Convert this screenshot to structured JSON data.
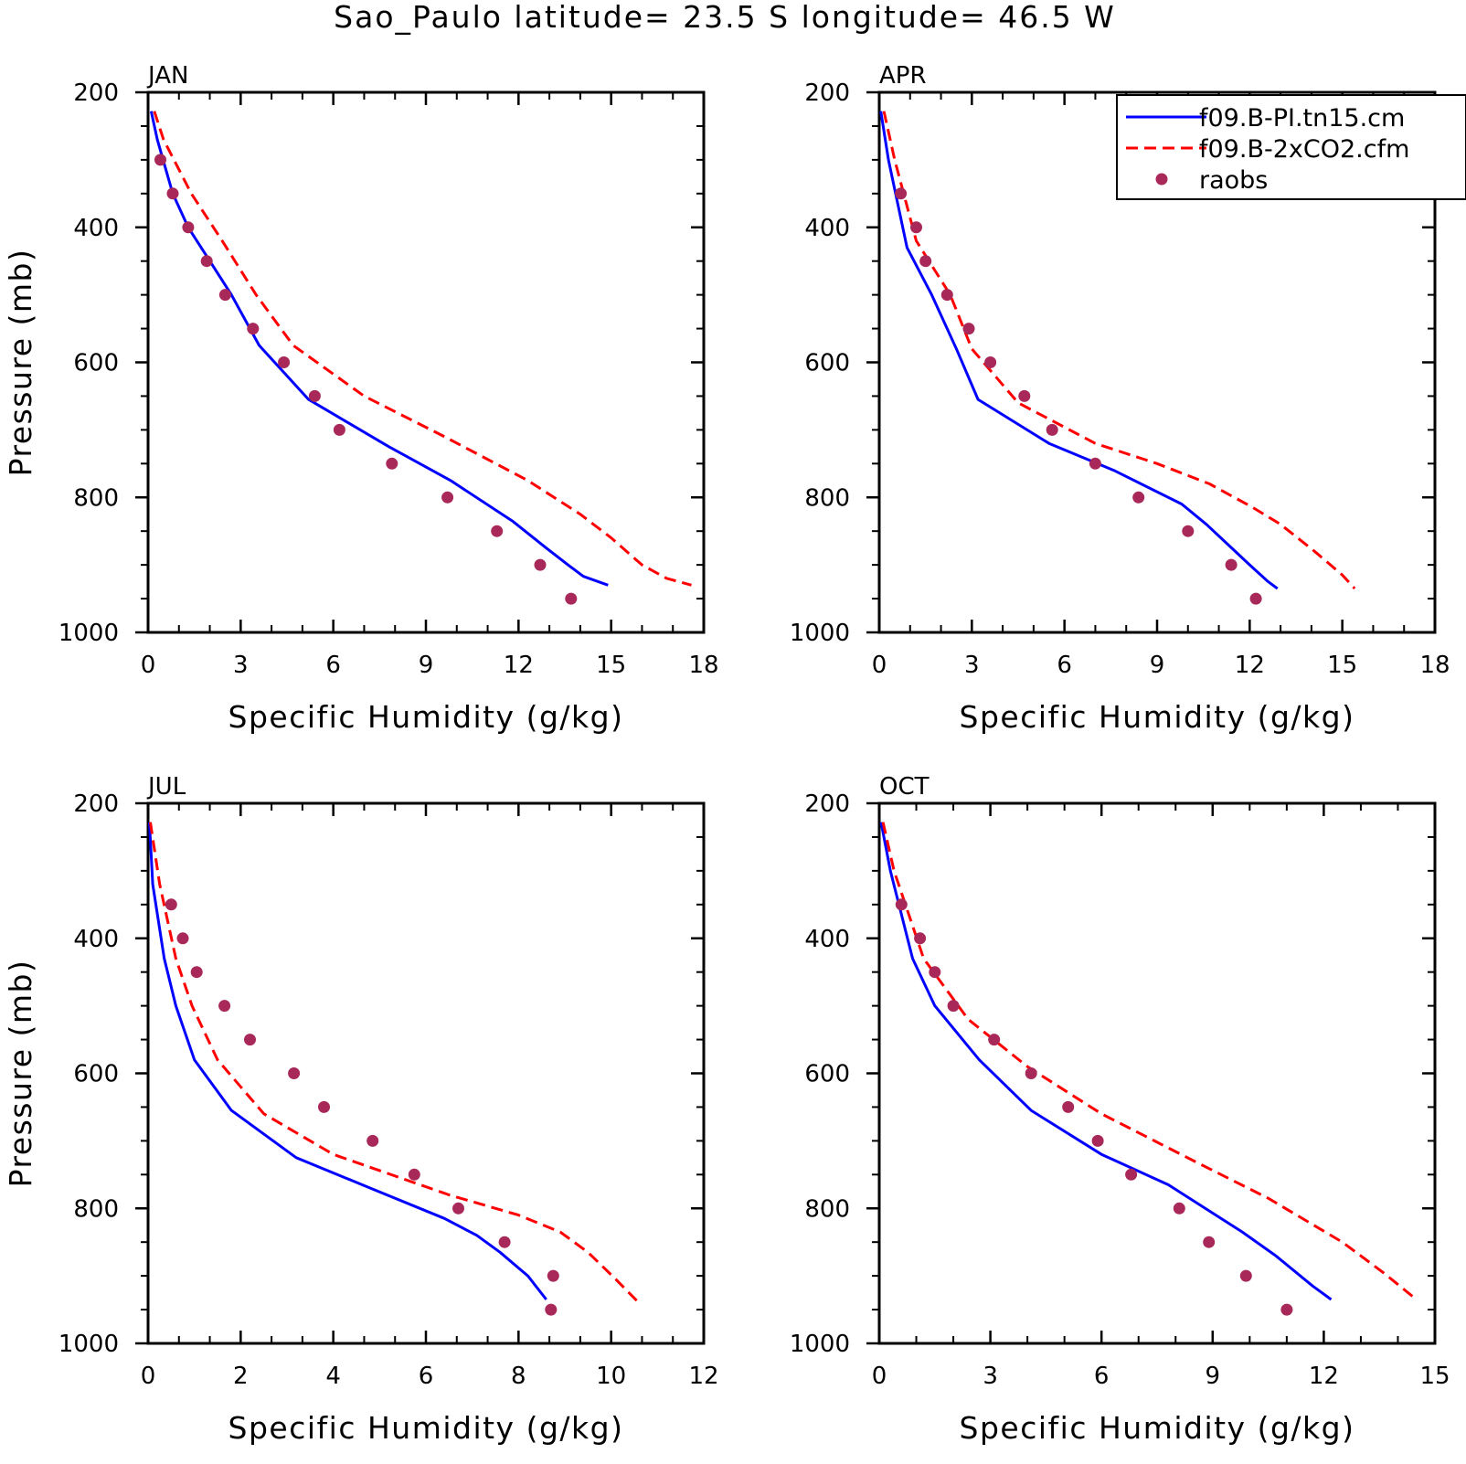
{
  "title": "Sao_Paulo  latitude= 23.5 S longitude= 46.5 W",
  "legend": {
    "position": "top-right of APR panel",
    "entries": [
      {
        "label": "f09.B-PI.tn15.cm",
        "style": "solid",
        "color": "#0000ff"
      },
      {
        "label": "f09.B-2xCO2.cfm",
        "style": "dashed",
        "color": "#ff0000"
      },
      {
        "label": "raobs",
        "style": "marker",
        "color": "#a8285a"
      }
    ]
  },
  "colors": {
    "model_pi": "#0000ff",
    "model_2xco2": "#ff0000",
    "raobs": "#a8285a"
  },
  "chart_data": [
    {
      "type": "line",
      "panel": "JAN",
      "xlabel": "Specific Humidity (g/kg)",
      "ylabel": "Pressure (mb)",
      "xlim": [
        0,
        18
      ],
      "ylim": [
        1000,
        200
      ],
      "y_inverted": true,
      "xticks": [
        0,
        3,
        6,
        9,
        12,
        15,
        18
      ],
      "yticks": [
        200,
        400,
        600,
        800,
        1000
      ],
      "grid": false,
      "series": [
        {
          "name": "f09.B-PI.tn15.cm",
          "style": "solid",
          "x": [
            0.1,
            0.3,
            0.8,
            1.3,
            2.0,
            2.7,
            3.6,
            5.2,
            7.8,
            9.8,
            11.8,
            12.9,
            13.6,
            14.1,
            14.9
          ],
          "y": [
            228,
            270,
            350,
            400,
            450,
            500,
            575,
            655,
            725,
            775,
            835,
            875,
            900,
            917,
            930
          ]
        },
        {
          "name": "f09.B-2xCO2.cfm",
          "style": "dashed",
          "x": [
            0.2,
            0.5,
            1.4,
            2.4,
            3.5,
            4.7,
            7.0,
            9.6,
            12.3,
            14.0,
            15.0,
            16.0,
            16.8,
            17.6
          ],
          "y": [
            228,
            270,
            350,
            420,
            500,
            575,
            650,
            710,
            775,
            825,
            860,
            900,
            920,
            930
          ]
        },
        {
          "name": "raobs",
          "style": "marker",
          "x": [
            0.4,
            0.8,
            1.3,
            1.9,
            2.5,
            3.4,
            4.4,
            5.4,
            6.2,
            7.9,
            9.7,
            11.3,
            12.7,
            13.7
          ],
          "y": [
            300,
            350,
            400,
            450,
            500,
            550,
            600,
            650,
            700,
            750,
            800,
            850,
            900,
            950
          ]
        }
      ]
    },
    {
      "type": "line",
      "panel": "APR",
      "xlabel": "Specific Humidity (g/kg)",
      "ylabel": "",
      "xlim": [
        0,
        18
      ],
      "ylim": [
        1000,
        200
      ],
      "y_inverted": true,
      "xticks": [
        0,
        3,
        6,
        9,
        12,
        15,
        18
      ],
      "yticks": [
        200,
        400,
        600,
        800,
        1000
      ],
      "grid": false,
      "series": [
        {
          "name": "f09.B-PI.tn15.cm",
          "style": "solid",
          "x": [
            0.05,
            0.3,
            0.9,
            1.7,
            2.5,
            3.2,
            5.5,
            7.6,
            9.8,
            10.6,
            11.3,
            12.0,
            12.6,
            12.9
          ],
          "y": [
            228,
            300,
            430,
            500,
            580,
            655,
            720,
            760,
            810,
            840,
            870,
            900,
            925,
            935
          ]
        },
        {
          "name": "f09.B-2xCO2.cfm",
          "style": "dashed",
          "x": [
            0.15,
            0.5,
            1.2,
            2.3,
            3.0,
            4.5,
            7.0,
            9.0,
            10.7,
            12.1,
            13.0,
            14.1,
            15.0,
            15.4
          ],
          "y": [
            228,
            300,
            420,
            500,
            580,
            660,
            720,
            750,
            780,
            815,
            840,
            880,
            915,
            935
          ]
        },
        {
          "name": "raobs",
          "style": "marker",
          "x": [
            0.7,
            1.2,
            1.5,
            2.2,
            2.9,
            3.6,
            4.7,
            5.6,
            7.0,
            8.4,
            10.0,
            11.4,
            12.2
          ],
          "y": [
            350,
            400,
            450,
            500,
            550,
            600,
            650,
            700,
            750,
            800,
            850,
            900,
            950
          ]
        }
      ]
    },
    {
      "type": "line",
      "panel": "JUL",
      "xlabel": "Specific Humidity (g/kg)",
      "ylabel": "Pressure (mb)",
      "xlim": [
        0,
        12
      ],
      "ylim": [
        1000,
        200
      ],
      "y_inverted": true,
      "xticks": [
        0,
        2,
        4,
        6,
        8,
        10,
        12
      ],
      "yticks": [
        200,
        400,
        600,
        800,
        1000
      ],
      "grid": false,
      "series": [
        {
          "name": "f09.B-PI.tn15.cm",
          "style": "solid",
          "x": [
            0.03,
            0.1,
            0.35,
            0.6,
            1.0,
            1.8,
            3.2,
            4.8,
            6.4,
            7.1,
            7.6,
            8.2,
            8.6
          ],
          "y": [
            228,
            320,
            430,
            500,
            580,
            655,
            725,
            770,
            815,
            840,
            865,
            900,
            935
          ]
        },
        {
          "name": "f09.B-2xCO2.cfm",
          "style": "dashed",
          "x": [
            0.05,
            0.25,
            0.6,
            0.95,
            1.5,
            2.5,
            4.0,
            6.5,
            8.0,
            8.9,
            9.5,
            10.1,
            10.6
          ],
          "y": [
            228,
            320,
            430,
            500,
            580,
            660,
            720,
            780,
            810,
            835,
            865,
            905,
            940
          ]
        },
        {
          "name": "raobs",
          "style": "marker",
          "x": [
            0.5,
            0.75,
            1.05,
            1.65,
            2.2,
            3.15,
            3.8,
            4.85,
            5.75,
            6.7,
            7.7,
            8.75,
            8.7
          ],
          "y": [
            350,
            400,
            450,
            500,
            550,
            600,
            650,
            700,
            750,
            800,
            850,
            900,
            950
          ]
        }
      ]
    },
    {
      "type": "line",
      "panel": "OCT",
      "xlabel": "Specific Humidity (g/kg)",
      "ylabel": "",
      "xlim": [
        0,
        15
      ],
      "ylim": [
        1000,
        200
      ],
      "y_inverted": true,
      "xticks": [
        0,
        3,
        6,
        9,
        12,
        15
      ],
      "yticks": [
        200,
        400,
        600,
        800,
        1000
      ],
      "grid": false,
      "series": [
        {
          "name": "f09.B-PI.tn15.cm",
          "style": "solid",
          "x": [
            0.05,
            0.3,
            0.9,
            1.5,
            2.7,
            4.1,
            6.0,
            7.8,
            9.8,
            10.7,
            11.7,
            12.2
          ],
          "y": [
            228,
            300,
            430,
            500,
            580,
            655,
            720,
            765,
            835,
            870,
            915,
            935
          ]
        },
        {
          "name": "f09.B-2xCO2.cfm",
          "style": "dashed",
          "x": [
            0.1,
            0.4,
            1.2,
            2.4,
            4.0,
            6.0,
            8.5,
            10.5,
            12.5,
            13.6,
            14.5
          ],
          "y": [
            228,
            300,
            430,
            520,
            590,
            660,
            730,
            785,
            850,
            895,
            935
          ]
        },
        {
          "name": "raobs",
          "style": "marker",
          "x": [
            0.6,
            1.1,
            1.5,
            2.0,
            3.1,
            4.1,
            5.1,
            5.9,
            6.8,
            8.1,
            8.9,
            9.9,
            11.0
          ],
          "y": [
            350,
            400,
            450,
            500,
            550,
            600,
            650,
            700,
            750,
            800,
            850,
            900,
            950
          ]
        }
      ]
    }
  ]
}
